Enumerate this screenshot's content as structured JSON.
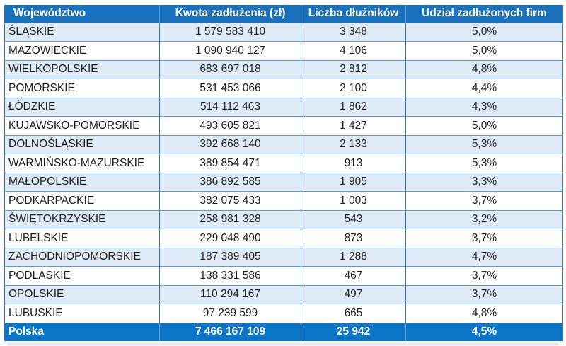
{
  "chart_data": {
    "type": "table",
    "columns": [
      "Województwo",
      "Kwota zadłużenia (zł)",
      "Liczba dłużników",
      "Udział zadłużonych firm"
    ],
    "rows": [
      [
        "ŚLĄSKIE",
        "1 579 583 410",
        "3 348",
        "5,0%"
      ],
      [
        "MAZOWIECKIE",
        "1 090 940 127",
        "4 106",
        "5,0%"
      ],
      [
        "WIELKOPOLSKIE",
        "683 697 018",
        "2 812",
        "4,8%"
      ],
      [
        "POMORSKIE",
        "531 453 066",
        "2 100",
        "4,4%"
      ],
      [
        "ŁÓDZKIE",
        "514 112 463",
        "1 862",
        "4,3%"
      ],
      [
        "KUJAWSKO-POMORSKIE",
        "493 605 821",
        "1 427",
        "5,0%"
      ],
      [
        "DOLNOŚLĄSKIE",
        "392 668 140",
        "2 133",
        "5,3%"
      ],
      [
        "WARMIŃSKO-MAZURSKIE",
        "389 854 471",
        "913",
        "5,3%"
      ],
      [
        "MAŁOPOLSKIE",
        "386 892 585",
        "1 905",
        "3,3%"
      ],
      [
        "PODKARPACKIE",
        "382 075 433",
        "1 003",
        "3,7%"
      ],
      [
        "ŚWIĘTOKRZYSKIE",
        "258 981 328",
        "543",
        "3,2%"
      ],
      [
        "LUBELSKIE",
        "229 048 490",
        "873",
        "3,7%"
      ],
      [
        "ZACHODNIOPOMORSKIE",
        "187 389 405",
        "1 288",
        "4,7%"
      ],
      [
        "PODLASKIE",
        "138 331 586",
        "467",
        "3,7%"
      ],
      [
        "OPOLSKIE",
        "110 294 167",
        "497",
        "3,7%"
      ],
      [
        "LUBUSKIE",
        "97 239 599",
        "665",
        "4,8%"
      ]
    ],
    "total_row": [
      "Polska",
      "7 466 167 109",
      "25 942",
      "4,5%"
    ]
  },
  "colors": {
    "header_bg": "#1a71be",
    "total_bg": "#0b76c8",
    "stripe_bg": "#deebf7",
    "row_border": "#5b9bd5",
    "col_border": "#41719c",
    "header_divider": "#5c9fd6",
    "under_header_line": "#bdd7ee",
    "text_color": "#1f1f1f"
  }
}
